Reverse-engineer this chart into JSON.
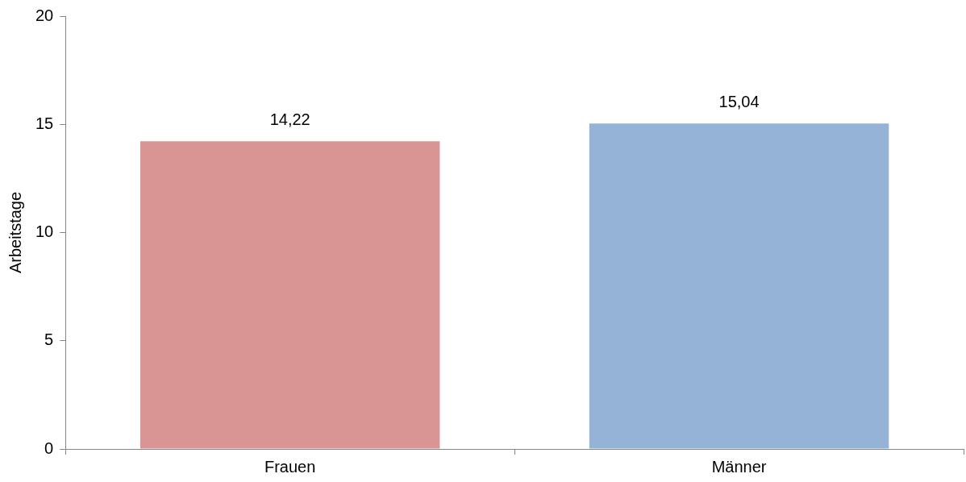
{
  "chart_data": {
    "type": "bar",
    "ylabel": "Arbeitstage",
    "categories": [
      "Frauen",
      "Männer"
    ],
    "values": [
      14.22,
      15.04
    ],
    "colors": [
      "#d99594",
      "#95b3d7"
    ],
    "value_labels": [
      "14,22",
      "15,04"
    ],
    "ylim": [
      0,
      20
    ],
    "yticks": [
      0,
      5,
      10,
      15,
      20
    ],
    "grid": false,
    "legend": false
  }
}
